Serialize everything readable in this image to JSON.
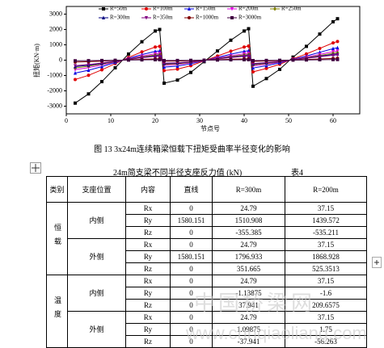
{
  "chart_data": {
    "type": "line",
    "y_label": "扭矩(KN·m)",
    "x_label": "节点号",
    "x": [
      2,
      5,
      8,
      11,
      14,
      17,
      20,
      21,
      22,
      25,
      28,
      31,
      34,
      37,
      40,
      41,
      42,
      45,
      48,
      51,
      54,
      57,
      60,
      61
    ],
    "xlim": [
      0,
      66
    ],
    "xticks": [
      0,
      10,
      20,
      30,
      40,
      50,
      60
    ],
    "ylim": [
      -3500,
      3500
    ],
    "yticks": [
      -3000,
      -2000,
      -1000,
      0,
      1000,
      2000,
      3000
    ],
    "grid": false,
    "series": [
      {
        "name": "R=50m",
        "color": "#000000",
        "marker": "square",
        "values": [
          -2800,
          -2200,
          -1400,
          -500,
          400,
          1200,
          1900,
          2000,
          -1500,
          -1300,
          -800,
          -100,
          600,
          1300,
          1900,
          2050,
          -1700,
          -1200,
          -600,
          200,
          900,
          1700,
          2500,
          2700
        ]
      },
      {
        "name": "R=100m",
        "color": "#e00000",
        "marker": "circle",
        "values": [
          -1260,
          -990,
          -630,
          -225,
          180,
          540,
          855,
          900,
          -675,
          -585,
          -360,
          -45,
          270,
          585,
          855,
          923,
          -765,
          -540,
          -270,
          90,
          405,
          765,
          1125,
          1215
        ]
      },
      {
        "name": "R=150m",
        "color": "#0000e0",
        "marker": "triangle",
        "values": [
          -840,
          -660,
          -420,
          -150,
          120,
          360,
          570,
          600,
          -450,
          -390,
          -240,
          -30,
          180,
          390,
          570,
          615,
          -510,
          -360,
          -180,
          60,
          270,
          510,
          750,
          810
        ]
      },
      {
        "name": "R=200m",
        "color": "#e000e0",
        "marker": "triangle-down",
        "values": [
          -616,
          -484,
          -308,
          -110,
          88,
          264,
          418,
          440,
          -330,
          -286,
          -176,
          -22,
          132,
          286,
          418,
          451,
          -374,
          -264,
          -132,
          44,
          198,
          374,
          550,
          594
        ]
      },
      {
        "name": "R=250m",
        "color": "#808000",
        "marker": "diamond",
        "values": [
          -504,
          -396,
          -252,
          -90,
          72,
          216,
          342,
          360,
          -270,
          -234,
          -144,
          -18,
          108,
          234,
          342,
          369,
          -306,
          -216,
          -108,
          36,
          162,
          306,
          450,
          486
        ]
      },
      {
        "name": "R=300m",
        "color": "#000080",
        "marker": "triangle",
        "values": [
          -420,
          -330,
          -210,
          -75,
          60,
          180,
          285,
          300,
          -225,
          -195,
          -120,
          -15,
          90,
          195,
          285,
          308,
          -255,
          -180,
          -90,
          30,
          135,
          255,
          375,
          405
        ]
      },
      {
        "name": "R=350m",
        "color": "#800080",
        "marker": "triangle-down",
        "values": [
          -364,
          -286,
          -182,
          -65,
          52,
          156,
          247,
          260,
          -195,
          -169,
          -104,
          -13,
          78,
          169,
          247,
          267,
          -221,
          -156,
          -78,
          26,
          117,
          221,
          325,
          351
        ]
      },
      {
        "name": "R=1000m",
        "color": "#800000",
        "marker": "circle",
        "values": [
          -126,
          -99,
          -63,
          -23,
          18,
          54,
          86,
          90,
          -68,
          -59,
          -36,
          -5,
          27,
          59,
          86,
          92,
          -77,
          -54,
          -27,
          9,
          41,
          77,
          113,
          122
        ]
      },
      {
        "name": "R=3000m",
        "color": "#400040",
        "marker": "square",
        "values": [
          -42,
          -33,
          -21,
          -8,
          6,
          18,
          29,
          30,
          -23,
          -20,
          -12,
          -2,
          9,
          20,
          29,
          31,
          -26,
          -18,
          -9,
          3,
          14,
          26,
          38,
          41
        ]
      }
    ]
  },
  "caption": "图 13 3x24m连续箱梁恒载下扭矩受曲率半径变化的影响",
  "table": {
    "title": "24m简支梁不同半径支座反力值 (kN)",
    "number": "表4",
    "header": [
      "类别",
      "支座位置",
      "内容",
      "直线",
      "R=300m",
      "R=200m"
    ],
    "groups": [
      {
        "category": "恒载",
        "positions": [
          {
            "name": "内侧",
            "rows": [
              [
                "Rx",
                0,
                24.79,
                37.15
              ],
              [
                "Ry",
                1580.151,
                1510.908,
                1439.572
              ],
              [
                "Rz",
                0,
                -355.385,
                -535.211
              ]
            ]
          },
          {
            "name": "外侧",
            "rows": [
              [
                "Rx",
                0,
                24.79,
                37.15
              ],
              [
                "Ry",
                1580.151,
                1796.933,
                1868.928
              ],
              [
                "Rz",
                0,
                351.665,
                525.3513
              ]
            ]
          }
        ]
      },
      {
        "category": "温度",
        "positions": [
          {
            "name": "内侧",
            "rows": [
              [
                "Rx",
                0,
                24.79,
                37.15
              ],
              [
                "Ry",
                0,
                -1.13875,
                -1.6
              ],
              [
                "Rz",
                0,
                37.941,
                209.6575
              ]
            ]
          },
          {
            "name": "外侧",
            "rows": [
              [
                "Rx",
                0,
                24.79,
                37.15
              ],
              [
                "Ry",
                0,
                1.09875,
                1.75
              ],
              [
                "Rz",
                0,
                -37.941,
                -56.263
              ]
            ]
          }
        ]
      }
    ]
  },
  "watermark": [
    "中国桥梁网",
    "www.chnqiaoliang.com"
  ]
}
